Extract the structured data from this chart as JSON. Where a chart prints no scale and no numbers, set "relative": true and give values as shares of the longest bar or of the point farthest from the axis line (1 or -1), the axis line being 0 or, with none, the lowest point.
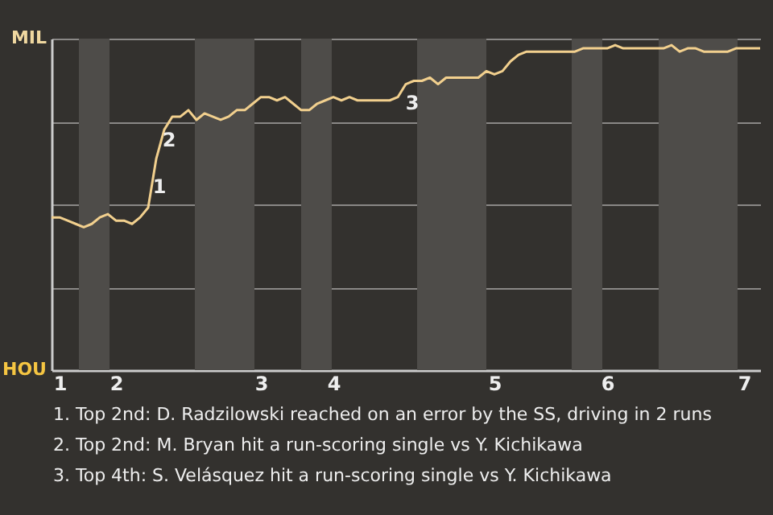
{
  "chart_data": {
    "type": "line",
    "relative": true,
    "categories": [
      null,
      "1",
      null,
      null,
      null,
      null,
      null,
      null,
      "2",
      null,
      null,
      null,
      null,
      null,
      null,
      null,
      null,
      null,
      null,
      null,
      null,
      null,
      null,
      null,
      null,
      null,
      "3",
      null,
      null,
      null,
      null,
      null,
      null,
      null,
      null,
      "4",
      null,
      null,
      null,
      null,
      null,
      null,
      null,
      null,
      null,
      null,
      null,
      null,
      null,
      null,
      null,
      null,
      null,
      null,
      null,
      "5",
      null,
      null,
      null,
      null,
      null,
      null,
      null,
      null,
      null,
      null,
      null,
      null,
      null,
      "6",
      null,
      null,
      null,
      null,
      null,
      null,
      null,
      null,
      null,
      null,
      null,
      null,
      null,
      null,
      null,
      null,
      "7",
      null,
      null
    ],
    "series": [
      {
        "color": "#f2d08e",
        "values": [
          0.47,
          0.47,
          0.46,
          0.45,
          0.44,
          0.45,
          0.47,
          0.48,
          0.46,
          0.46,
          0.45,
          0.47,
          0.5,
          0.65,
          0.74,
          0.78,
          0.78,
          0.8,
          0.77,
          0.79,
          0.78,
          0.77,
          0.78,
          0.8,
          0.8,
          0.82,
          0.84,
          0.84,
          0.83,
          0.84,
          0.82,
          0.8,
          0.8,
          0.82,
          0.83,
          0.84,
          0.83,
          0.84,
          0.83,
          0.83,
          0.83,
          0.83,
          0.83,
          0.84,
          0.88,
          0.89,
          0.89,
          0.9,
          0.88,
          0.9,
          0.9,
          0.9,
          0.9,
          0.9,
          0.92,
          0.91,
          0.92,
          0.95,
          0.97,
          0.98,
          0.98,
          0.98,
          0.98,
          0.98,
          0.98,
          0.98,
          0.99,
          0.99,
          0.99,
          0.99,
          1,
          0.99,
          0.99,
          0.99,
          0.99,
          0.99,
          0.99,
          1,
          0.98,
          0.99,
          0.99,
          0.98,
          0.98,
          0.98,
          0.98,
          0.99,
          0.99,
          0.99,
          0.99
        ]
      }
    ],
    "grid": "y",
    "annotations": [
      "MIL",
      "HOU",
      "1",
      "2",
      "3",
      "1. Top 2nd: D. Radzilowski reached on an error by the SS, driving in 2 runs",
      "2. Top 2nd: M. Bryan hit a run-scoring single vs Y. Kichikawa",
      "3. Top 4th: S. Velásquez hit a run-scoring single vs Y. Kichikawa"
    ]
  }
}
